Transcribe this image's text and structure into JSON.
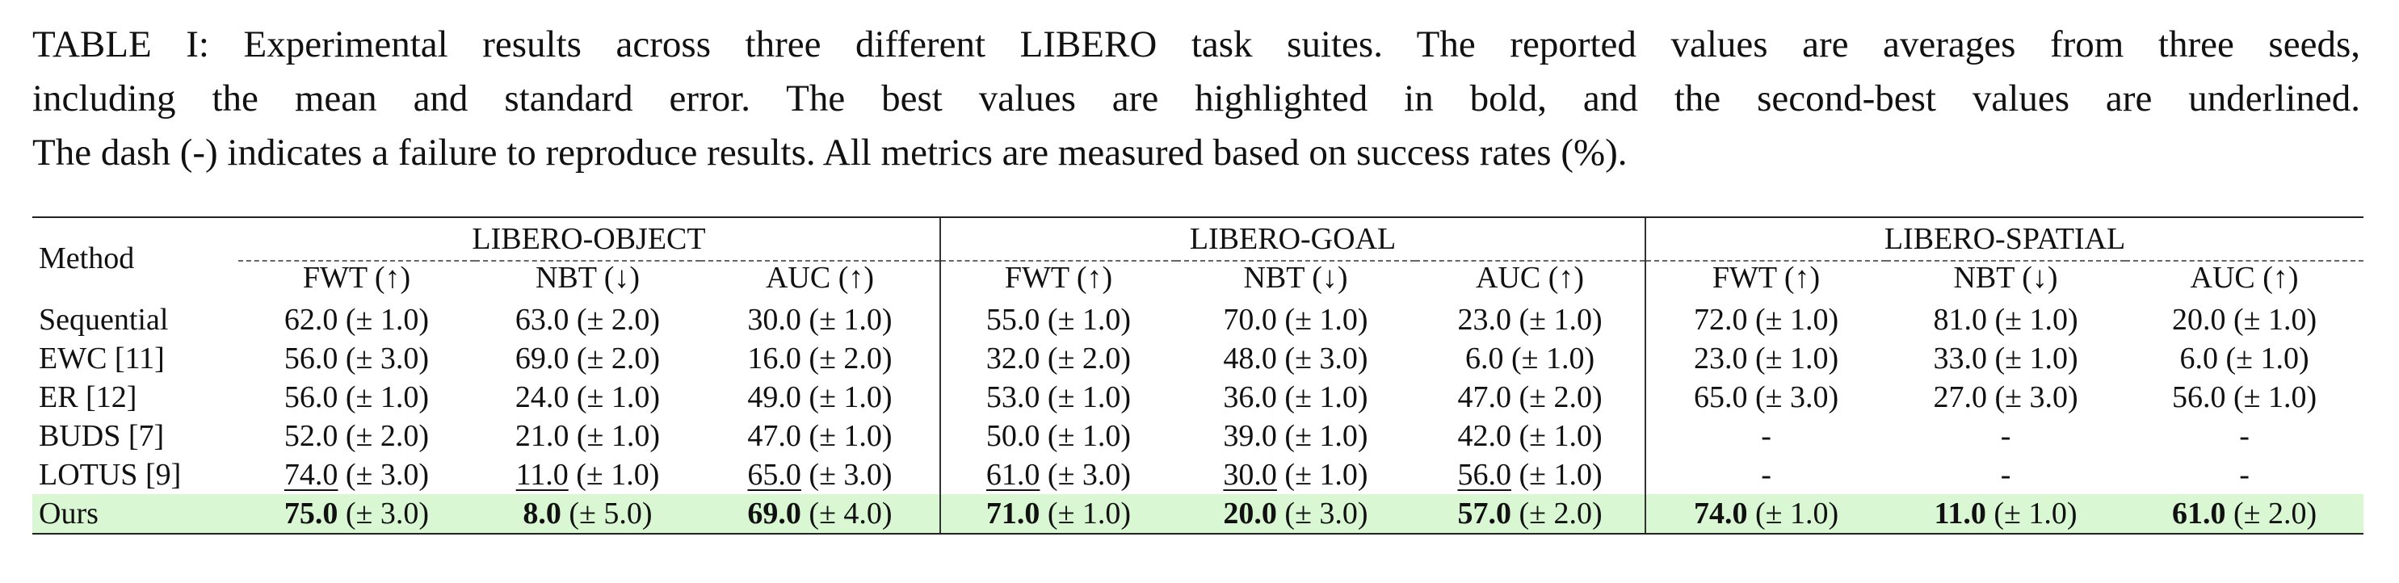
{
  "caption": {
    "lines": [
      "TABLE I: Experimental results across three different LIBERO task suites. The reported values are averages from three seeds,",
      "including the mean and standard error. The best values are highlighted in bold, and the second-best values are underlined.",
      "The dash (-) indicates a failure to reproduce results. All metrics are measured based on success rates (%)."
    ]
  },
  "table": {
    "method_header": "Method",
    "suites": [
      "LIBERO-OBJECT",
      "LIBERO-GOAL",
      "LIBERO-SPATIAL"
    ],
    "metrics": [
      "FWT (↑)",
      "NBT (↓)",
      "AUC (↑)"
    ],
    "rows": [
      {
        "method": "Sequential",
        "cells": [
          {
            "m": "62.0",
            "se": "(± 1.0)"
          },
          {
            "m": "63.0",
            "se": "(± 2.0)"
          },
          {
            "m": "30.0",
            "se": "(± 1.0)"
          },
          {
            "m": "55.0",
            "se": "(± 1.0)"
          },
          {
            "m": "70.0",
            "se": "(± 1.0)"
          },
          {
            "m": "23.0",
            "se": "(± 1.0)"
          },
          {
            "m": "72.0",
            "se": "(± 1.0)"
          },
          {
            "m": "81.0",
            "se": "(± 1.0)"
          },
          {
            "m": "20.0",
            "se": "(± 1.0)"
          }
        ]
      },
      {
        "method": "EWC [11]",
        "cells": [
          {
            "m": "56.0",
            "se": "(± 3.0)"
          },
          {
            "m": "69.0",
            "se": "(± 2.0)"
          },
          {
            "m": "16.0",
            "se": "(± 2.0)"
          },
          {
            "m": "32.0",
            "se": "(± 2.0)"
          },
          {
            "m": "48.0",
            "se": "(± 3.0)"
          },
          {
            "m": "6.0",
            "se": "(± 1.0)"
          },
          {
            "m": "23.0",
            "se": "(± 1.0)"
          },
          {
            "m": "33.0",
            "se": "(± 1.0)"
          },
          {
            "m": "6.0",
            "se": "(± 1.0)"
          }
        ]
      },
      {
        "method": "ER [12]",
        "cells": [
          {
            "m": "56.0",
            "se": "(± 1.0)"
          },
          {
            "m": "24.0",
            "se": "(± 1.0)"
          },
          {
            "m": "49.0",
            "se": "(± 1.0)"
          },
          {
            "m": "53.0",
            "se": "(± 1.0)"
          },
          {
            "m": "36.0",
            "se": "(± 1.0)"
          },
          {
            "m": "47.0",
            "se": "(± 2.0)"
          },
          {
            "m": "65.0",
            "se": "(± 3.0)"
          },
          {
            "m": "27.0",
            "se": "(± 3.0)"
          },
          {
            "m": "56.0",
            "se": "(± 1.0)"
          }
        ]
      },
      {
        "method": "BUDS [7]",
        "cells": [
          {
            "m": "52.0",
            "se": "(± 2.0)"
          },
          {
            "m": "21.0",
            "se": "(± 1.0)"
          },
          {
            "m": "47.0",
            "se": "(± 1.0)"
          },
          {
            "m": "50.0",
            "se": "(± 1.0)"
          },
          {
            "m": "39.0",
            "se": "(± 1.0)"
          },
          {
            "m": "42.0",
            "se": "(± 1.0)"
          },
          {
            "m": "-",
            "se": ""
          },
          {
            "m": "-",
            "se": ""
          },
          {
            "m": "-",
            "se": ""
          }
        ]
      },
      {
        "method": "LOTUS [9]",
        "cells": [
          {
            "m": "74.0",
            "se": "(± 3.0)"
          },
          {
            "m": "11.0",
            "se": "(± 1.0)"
          },
          {
            "m": "65.0",
            "se": "(± 3.0)"
          },
          {
            "m": "61.0",
            "se": "(± 3.0)"
          },
          {
            "m": "30.0",
            "se": "(± 1.0)"
          },
          {
            "m": "56.0",
            "se": "(± 1.0)"
          },
          {
            "m": "-",
            "se": ""
          },
          {
            "m": "-",
            "se": ""
          },
          {
            "m": "-",
            "se": ""
          }
        ]
      },
      {
        "method": "Ours",
        "cells": [
          {
            "m": "75.0",
            "se": "(± 3.0)"
          },
          {
            "m": "8.0",
            "se": "(± 5.0)"
          },
          {
            "m": "69.0",
            "se": "(± 4.0)"
          },
          {
            "m": "71.0",
            "se": "(± 1.0)"
          },
          {
            "m": "20.0",
            "se": "(± 3.0)"
          },
          {
            "m": "57.0",
            "se": "(± 2.0)"
          },
          {
            "m": "74.0",
            "se": "(± 1.0)"
          },
          {
            "m": "11.0",
            "se": "(± 1.0)"
          },
          {
            "m": "61.0",
            "se": "(± 2.0)"
          }
        ]
      }
    ],
    "highlight_color": "#d9f7d3",
    "underlined_row": "LOTUS [9]",
    "bold_row": "Ours"
  }
}
